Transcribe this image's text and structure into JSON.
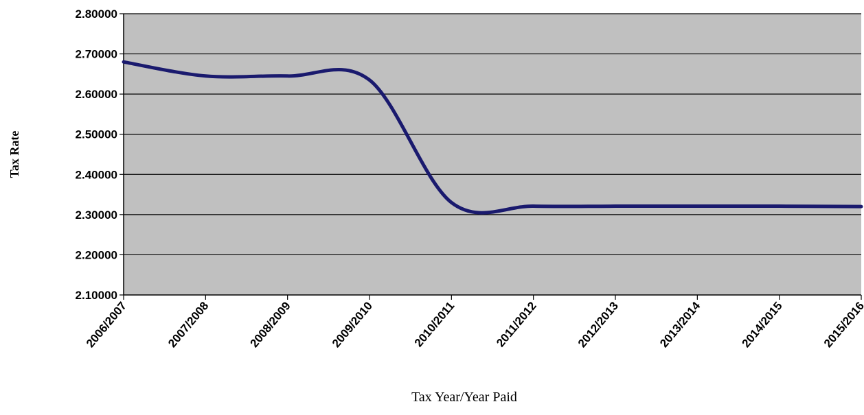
{
  "chart_data": {
    "type": "line",
    "title": "",
    "xlabel": "Tax Year/Year Paid",
    "ylabel": "Tax Rate",
    "categories": [
      "2006/2007",
      "2007/2008",
      "2008/2009",
      "2009/2010",
      "2010/2011",
      "2011/2012",
      "2012/2013",
      "2013/2014",
      "2014/2015",
      "2015/2016"
    ],
    "series": [
      {
        "values": [
          2.68,
          2.645,
          2.645,
          2.635,
          2.33,
          2.321,
          2.321,
          2.321,
          2.321,
          2.32
        ]
      }
    ],
    "ylim": [
      2.1,
      2.8
    ],
    "yticks": [
      "2.10000",
      "2.20000",
      "2.30000",
      "2.40000",
      "2.50000",
      "2.60000",
      "2.70000",
      "2.80000"
    ],
    "grid": true,
    "smooth": true,
    "legend": "none",
    "colors": {
      "line": "#1a1a6e",
      "plot_background": "#c0c0c0",
      "gridline": "#000000"
    }
  }
}
